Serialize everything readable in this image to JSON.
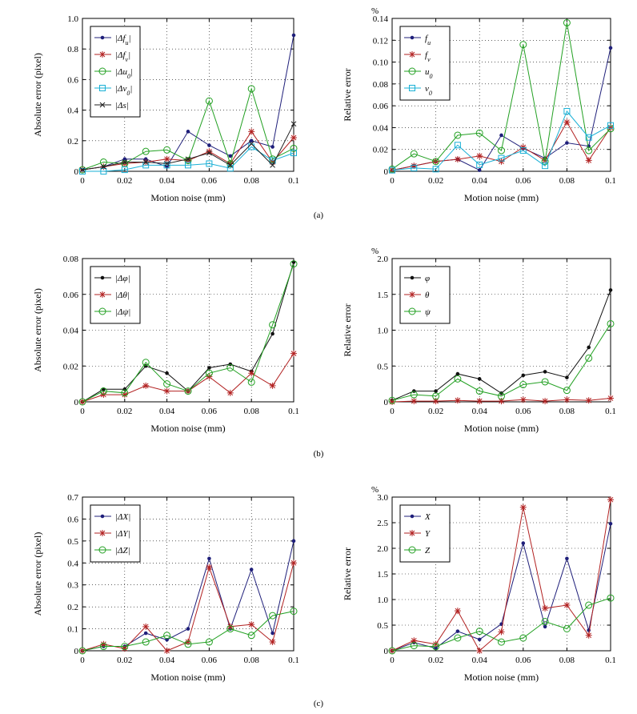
{
  "figure": {
    "panel_labels": [
      "(a)",
      "(b)",
      "(c)"
    ]
  },
  "chart_data": [
    {
      "id": "a-left",
      "type": "line",
      "xlabel": "Motion noise (mm)",
      "ylabel": "Absolute error (pixel)",
      "unit": "",
      "x": [
        0,
        0.01,
        0.02,
        0.03,
        0.04,
        0.05,
        0.06,
        0.07,
        0.08,
        0.09,
        0.1
      ],
      "xlim": [
        0,
        0.1
      ],
      "ylim": [
        0,
        1.0
      ],
      "xticks": [
        "0",
        "0.02",
        "0.04",
        "0.06",
        "0.08",
        "0.1"
      ],
      "yticks": [
        "0",
        "0.2",
        "0.4",
        "0.6",
        "0.8",
        "1.0"
      ],
      "ytick_values": [
        0,
        0.2,
        0.4,
        0.6,
        0.8,
        1.0
      ],
      "grid": true,
      "legend_position": "top-left",
      "series": [
        {
          "name": "|Δf_u|",
          "color": "#1f1f7a",
          "marker": "dot",
          "values": [
            0.01,
            0.03,
            0.08,
            0.08,
            0.03,
            0.26,
            0.17,
            0.1,
            0.2,
            0.16,
            0.89
          ]
        },
        {
          "name": "|Δf_v|",
          "color": "#b22222",
          "marker": "star",
          "values": [
            0.01,
            0.03,
            0.05,
            0.06,
            0.08,
            0.07,
            0.13,
            0.05,
            0.26,
            0.06,
            0.22
          ]
        },
        {
          "name": "|Δu_0|",
          "color": "#22a022",
          "marker": "circle",
          "values": [
            0.01,
            0.06,
            0.05,
            0.13,
            0.14,
            0.07,
            0.46,
            0.05,
            0.54,
            0.08,
            0.15
          ]
        },
        {
          "name": "|Δv_0|",
          "color": "#19b0d6",
          "marker": "square",
          "values": [
            0.0,
            0.0,
            0.01,
            0.04,
            0.04,
            0.04,
            0.05,
            0.02,
            0.16,
            0.07,
            0.12
          ]
        },
        {
          "name": "|Δs|",
          "color": "#222222",
          "marker": "x",
          "values": [
            0.01,
            0.03,
            0.06,
            0.06,
            0.05,
            0.08,
            0.12,
            0.04,
            0.18,
            0.04,
            0.31
          ]
        }
      ]
    },
    {
      "id": "a-right",
      "type": "line",
      "xlabel": "Motion noise (mm)",
      "ylabel": "Relative error",
      "unit": "%",
      "x": [
        0,
        0.01,
        0.02,
        0.03,
        0.04,
        0.05,
        0.06,
        0.07,
        0.08,
        0.09,
        0.1
      ],
      "xlim": [
        0,
        0.1
      ],
      "ylim": [
        0,
        0.14
      ],
      "xticks": [
        "0",
        "0.02",
        "0.04",
        "0.06",
        "0.08",
        "0.1"
      ],
      "yticks": [
        "0",
        "0.02",
        "0.04",
        "0.06",
        "0.08",
        "0.10",
        "0.12",
        "0.14"
      ],
      "ytick_values": [
        0,
        0.02,
        0.04,
        0.06,
        0.08,
        0.1,
        0.12,
        0.14
      ],
      "grid": true,
      "legend_position": "top-left",
      "series": [
        {
          "name": "f_u",
          "color": "#1f1f7a",
          "marker": "dot",
          "values": [
            0.001,
            0.005,
            0.009,
            0.011,
            0.001,
            0.033,
            0.021,
            0.012,
            0.026,
            0.023,
            0.113
          ]
        },
        {
          "name": "f_v",
          "color": "#b22222",
          "marker": "star",
          "values": [
            0.001,
            0.005,
            0.009,
            0.011,
            0.014,
            0.009,
            0.022,
            0.01,
            0.045,
            0.01,
            0.04
          ]
        },
        {
          "name": "u_0",
          "color": "#22a022",
          "marker": "circle",
          "values": [
            0.002,
            0.016,
            0.009,
            0.033,
            0.035,
            0.019,
            0.116,
            0.009,
            0.136,
            0.019,
            0.039
          ]
        },
        {
          "name": "v_0",
          "color": "#19b0d6",
          "marker": "square",
          "values": [
            0.001,
            0.003,
            0.002,
            0.024,
            0.006,
            0.012,
            0.019,
            0.005,
            0.055,
            0.031,
            0.042
          ]
        }
      ]
    },
    {
      "id": "b-left",
      "type": "line",
      "xlabel": "Motion noise (mm)",
      "ylabel": "Absolute error (pixel)",
      "unit": "",
      "x": [
        0,
        0.01,
        0.02,
        0.03,
        0.04,
        0.05,
        0.06,
        0.07,
        0.08,
        0.09,
        0.1
      ],
      "xlim": [
        0,
        0.1
      ],
      "ylim": [
        0,
        0.08
      ],
      "xticks": [
        "0",
        "0.02",
        "0.04",
        "0.06",
        "0.08",
        "0.1"
      ],
      "yticks": [
        "0",
        "0.02",
        "0.04",
        "0.06",
        "0.08"
      ],
      "ytick_values": [
        0,
        0.02,
        0.04,
        0.06,
        0.08
      ],
      "grid": true,
      "legend_position": "top-left",
      "series": [
        {
          "name": "|Δφ|",
          "color": "#111111",
          "marker": "dot",
          "values": [
            0.0,
            0.007,
            0.007,
            0.02,
            0.016,
            0.006,
            0.019,
            0.021,
            0.017,
            0.038,
            0.078
          ]
        },
        {
          "name": "|Δθ|",
          "color": "#b22222",
          "marker": "star",
          "values": [
            0.0,
            0.004,
            0.004,
            0.009,
            0.006,
            0.006,
            0.014,
            0.005,
            0.016,
            0.009,
            0.027
          ]
        },
        {
          "name": "|Δψ|",
          "color": "#22a022",
          "marker": "circle",
          "values": [
            0.0,
            0.006,
            0.005,
            0.022,
            0.01,
            0.006,
            0.016,
            0.019,
            0.011,
            0.043,
            0.077
          ]
        }
      ]
    },
    {
      "id": "b-right",
      "type": "line",
      "xlabel": "Motion noise (mm)",
      "ylabel": "Relative error",
      "unit": "%",
      "x": [
        0,
        0.01,
        0.02,
        0.03,
        0.04,
        0.05,
        0.06,
        0.07,
        0.08,
        0.09,
        0.1
      ],
      "xlim": [
        0,
        0.1
      ],
      "ylim": [
        0,
        2.0
      ],
      "xticks": [
        "0",
        "0.02",
        "0.04",
        "0.06",
        "0.08",
        "0.1"
      ],
      "yticks": [
        "0",
        "0.5",
        "1.0",
        "1.5",
        "2.0"
      ],
      "ytick_values": [
        0,
        0.5,
        1.0,
        1.5,
        2.0
      ],
      "grid": true,
      "legend_position": "top-left",
      "series": [
        {
          "name": "φ",
          "color": "#111111",
          "marker": "dot",
          "values": [
            0.02,
            0.15,
            0.15,
            0.39,
            0.32,
            0.12,
            0.37,
            0.42,
            0.34,
            0.76,
            1.56
          ]
        },
        {
          "name": "θ",
          "color": "#b22222",
          "marker": "star",
          "values": [
            0.0,
            0.01,
            0.01,
            0.02,
            0.01,
            0.01,
            0.03,
            0.01,
            0.03,
            0.02,
            0.05
          ]
        },
        {
          "name": "ψ",
          "color": "#22a022",
          "marker": "circle",
          "values": [
            0.02,
            0.1,
            0.08,
            0.32,
            0.15,
            0.08,
            0.24,
            0.28,
            0.16,
            0.61,
            1.09
          ]
        }
      ]
    },
    {
      "id": "c-left",
      "type": "line",
      "xlabel": "Motion noise (mm)",
      "ylabel": "Absolute error (pixel)",
      "unit": "",
      "x": [
        0,
        0.01,
        0.02,
        0.03,
        0.04,
        0.05,
        0.06,
        0.07,
        0.08,
        0.09,
        0.1
      ],
      "xlim": [
        0,
        0.1
      ],
      "ylim": [
        0,
        0.7
      ],
      "xticks": [
        "0",
        "0.02",
        "0.04",
        "0.06",
        "0.08",
        "0.1"
      ],
      "yticks": [
        "0",
        "0.1",
        "0.2",
        "0.3",
        "0.4",
        "0.5",
        "0.6",
        "0.7"
      ],
      "ytick_values": [
        0,
        0.1,
        0.2,
        0.3,
        0.4,
        0.5,
        0.6,
        0.7
      ],
      "grid": true,
      "legend_position": "top-left",
      "series": [
        {
          "name": "|ΔX|",
          "color": "#1f1f7a",
          "marker": "dot",
          "values": [
            0.0,
            0.02,
            0.02,
            0.08,
            0.05,
            0.1,
            0.42,
            0.1,
            0.37,
            0.08,
            0.5
          ]
        },
        {
          "name": "|ΔY|",
          "color": "#b22222",
          "marker": "star",
          "values": [
            0.0,
            0.03,
            0.01,
            0.11,
            0.0,
            0.04,
            0.38,
            0.11,
            0.12,
            0.04,
            0.4
          ]
        },
        {
          "name": "|ΔZ|",
          "color": "#22a022",
          "marker": "circle",
          "values": [
            0.0,
            0.02,
            0.02,
            0.04,
            0.07,
            0.03,
            0.04,
            0.1,
            0.07,
            0.16,
            0.18
          ]
        }
      ]
    },
    {
      "id": "c-right",
      "type": "line",
      "xlabel": "Motion noise (mm)",
      "ylabel": "Relative error",
      "unit": "%",
      "x": [
        0,
        0.01,
        0.02,
        0.03,
        0.04,
        0.05,
        0.06,
        0.07,
        0.08,
        0.09,
        0.1
      ],
      "xlim": [
        0,
        0.1
      ],
      "ylim": [
        0,
        3.0
      ],
      "xticks": [
        "0",
        "0.02",
        "0.04",
        "0.06",
        "0.08",
        "0.1"
      ],
      "yticks": [
        "0",
        "0.5",
        "1.0",
        "1.5",
        "2.0",
        "2.5",
        "3.0"
      ],
      "ytick_values": [
        0,
        0.5,
        1.0,
        1.5,
        2.0,
        2.5,
        3.0
      ],
      "grid": true,
      "legend_position": "top-left",
      "series": [
        {
          "name": "X",
          "color": "#1f1f7a",
          "marker": "dot",
          "values": [
            0.0,
            0.16,
            0.05,
            0.38,
            0.22,
            0.52,
            2.1,
            0.47,
            1.8,
            0.4,
            2.48
          ]
        },
        {
          "name": "Y",
          "color": "#b22222",
          "marker": "star",
          "values": [
            0.0,
            0.2,
            0.13,
            0.78,
            0.0,
            0.37,
            2.8,
            0.83,
            0.89,
            0.3,
            2.95
          ]
        },
        {
          "name": "Z",
          "color": "#22a022",
          "marker": "circle",
          "values": [
            0.0,
            0.1,
            0.08,
            0.25,
            0.38,
            0.17,
            0.25,
            0.57,
            0.43,
            0.89,
            1.03
          ]
        }
      ]
    }
  ]
}
